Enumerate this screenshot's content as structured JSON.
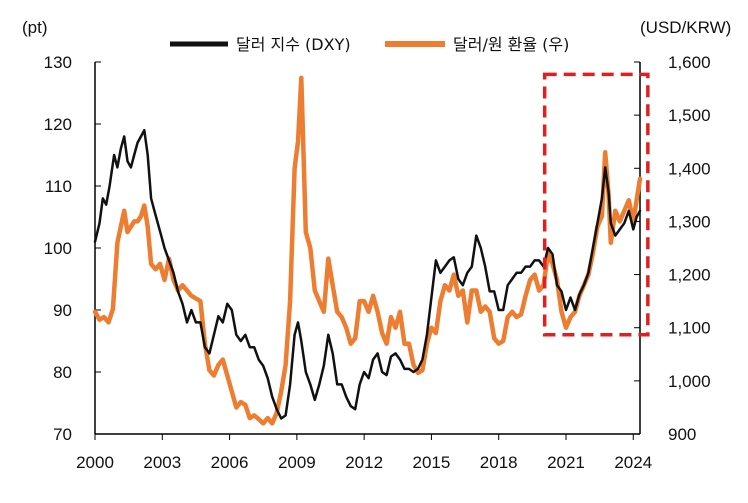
{
  "chart_data": {
    "type": "line",
    "x_axis": {
      "ticks": [
        "2000",
        "2003",
        "2006",
        "2009",
        "2012",
        "2015",
        "2018",
        "2021",
        "2024"
      ],
      "range": [
        2000,
        2024.3
      ]
    },
    "y_left": {
      "unit": "(pt)",
      "range": [
        70,
        130
      ],
      "ticks": [
        "70",
        "80",
        "90",
        "100",
        "110",
        "120",
        "130"
      ]
    },
    "y_right": {
      "unit": "(USD/KRW)",
      "range": [
        900,
        1600
      ],
      "ticks": [
        "900",
        "1,000",
        "1,100",
        "1,200",
        "1,300",
        "1,400",
        "1,500",
        "1,600"
      ]
    },
    "legend_position": "top",
    "series": [
      {
        "name": "달러 지수 (DXY)",
        "axis": "left",
        "color": "#111111",
        "points": [
          [
            2000.0,
            101
          ],
          [
            2000.2,
            104
          ],
          [
            2000.35,
            108
          ],
          [
            2000.5,
            107
          ],
          [
            2000.65,
            110
          ],
          [
            2000.85,
            115
          ],
          [
            2001.0,
            113
          ],
          [
            2001.15,
            116
          ],
          [
            2001.3,
            118
          ],
          [
            2001.45,
            114
          ],
          [
            2001.6,
            113
          ],
          [
            2001.75,
            115
          ],
          [
            2001.9,
            117
          ],
          [
            2002.05,
            118
          ],
          [
            2002.2,
            119
          ],
          [
            2002.35,
            115
          ],
          [
            2002.5,
            108
          ],
          [
            2002.65,
            106
          ],
          [
            2002.8,
            104
          ],
          [
            2002.95,
            102
          ],
          [
            2003.1,
            100
          ],
          [
            2003.3,
            98
          ],
          [
            2003.5,
            96
          ],
          [
            2003.7,
            93
          ],
          [
            2003.9,
            91
          ],
          [
            2004.1,
            88
          ],
          [
            2004.3,
            90
          ],
          [
            2004.5,
            88
          ],
          [
            2004.7,
            88
          ],
          [
            2004.9,
            84
          ],
          [
            2005.1,
            83
          ],
          [
            2005.3,
            86
          ],
          [
            2005.5,
            89
          ],
          [
            2005.7,
            88
          ],
          [
            2005.9,
            91
          ],
          [
            2006.1,
            90
          ],
          [
            2006.3,
            86
          ],
          [
            2006.5,
            85
          ],
          [
            2006.7,
            86
          ],
          [
            2006.9,
            84
          ],
          [
            2007.1,
            84
          ],
          [
            2007.3,
            82
          ],
          [
            2007.5,
            81
          ],
          [
            2007.7,
            79
          ],
          [
            2007.9,
            76
          ],
          [
            2008.1,
            74
          ],
          [
            2008.3,
            72.5
          ],
          [
            2008.5,
            73
          ],
          [
            2008.7,
            78
          ],
          [
            2008.9,
            86
          ],
          [
            2009.05,
            88
          ],
          [
            2009.2,
            85
          ],
          [
            2009.4,
            80
          ],
          [
            2009.6,
            78
          ],
          [
            2009.8,
            75.5
          ],
          [
            2010.0,
            78
          ],
          [
            2010.2,
            81
          ],
          [
            2010.4,
            86
          ],
          [
            2010.6,
            83
          ],
          [
            2010.8,
            78
          ],
          [
            2011.0,
            78
          ],
          [
            2011.2,
            76
          ],
          [
            2011.4,
            74.5
          ],
          [
            2011.6,
            74
          ],
          [
            2011.8,
            78
          ],
          [
            2012.0,
            80
          ],
          [
            2012.2,
            79
          ],
          [
            2012.4,
            82
          ],
          [
            2012.6,
            83
          ],
          [
            2012.8,
            80
          ],
          [
            2013.0,
            79.5
          ],
          [
            2013.2,
            82.5
          ],
          [
            2013.4,
            83
          ],
          [
            2013.6,
            82
          ],
          [
            2013.8,
            80.5
          ],
          [
            2014.0,
            80.5
          ],
          [
            2014.2,
            80
          ],
          [
            2014.4,
            80.5
          ],
          [
            2014.6,
            82
          ],
          [
            2014.8,
            86
          ],
          [
            2015.0,
            92
          ],
          [
            2015.2,
            98
          ],
          [
            2015.4,
            96
          ],
          [
            2015.6,
            97
          ],
          [
            2015.8,
            98
          ],
          [
            2016.0,
            98.5
          ],
          [
            2016.2,
            95
          ],
          [
            2016.4,
            94
          ],
          [
            2016.6,
            96
          ],
          [
            2016.8,
            97
          ],
          [
            2017.0,
            102
          ],
          [
            2017.2,
            100
          ],
          [
            2017.4,
            97
          ],
          [
            2017.6,
            93
          ],
          [
            2017.8,
            93
          ],
          [
            2018.0,
            90
          ],
          [
            2018.2,
            90
          ],
          [
            2018.4,
            94
          ],
          [
            2018.6,
            95
          ],
          [
            2018.8,
            96
          ],
          [
            2019.0,
            96
          ],
          [
            2019.2,
            97
          ],
          [
            2019.4,
            97
          ],
          [
            2019.6,
            98
          ],
          [
            2019.8,
            98
          ],
          [
            2020.0,
            97
          ],
          [
            2020.2,
            100
          ],
          [
            2020.4,
            99
          ],
          [
            2020.6,
            94
          ],
          [
            2020.8,
            93
          ],
          [
            2021.0,
            90
          ],
          [
            2021.2,
            92
          ],
          [
            2021.4,
            90
          ],
          [
            2021.6,
            92.5
          ],
          [
            2021.8,
            94
          ],
          [
            2022.0,
            96
          ],
          [
            2022.2,
            100
          ],
          [
            2022.4,
            104
          ],
          [
            2022.6,
            108
          ],
          [
            2022.75,
            113
          ],
          [
            2022.9,
            109
          ],
          [
            2023.0,
            104
          ],
          [
            2023.2,
            102
          ],
          [
            2023.4,
            103
          ],
          [
            2023.6,
            104
          ],
          [
            2023.8,
            106
          ],
          [
            2024.0,
            103
          ],
          [
            2024.15,
            105
          ],
          [
            2024.3,
            106
          ]
        ]
      },
      {
        "name": "달러/원 환율 (우)",
        "axis": "right",
        "color": "#ED7D31",
        "points": [
          [
            2000.0,
            1130
          ],
          [
            2000.2,
            1115
          ],
          [
            2000.4,
            1120
          ],
          [
            2000.6,
            1110
          ],
          [
            2000.8,
            1135
          ],
          [
            2001.0,
            1260
          ],
          [
            2001.15,
            1290
          ],
          [
            2001.3,
            1320
          ],
          [
            2001.45,
            1280
          ],
          [
            2001.6,
            1290
          ],
          [
            2001.75,
            1300
          ],
          [
            2001.9,
            1300
          ],
          [
            2002.05,
            1310
          ],
          [
            2002.2,
            1330
          ],
          [
            2002.35,
            1290
          ],
          [
            2002.5,
            1220
          ],
          [
            2002.7,
            1210
          ],
          [
            2002.9,
            1220
          ],
          [
            2003.1,
            1190
          ],
          [
            2003.3,
            1230
          ],
          [
            2003.5,
            1190
          ],
          [
            2003.7,
            1170
          ],
          [
            2003.9,
            1180
          ],
          [
            2004.1,
            1170
          ],
          [
            2004.3,
            1160
          ],
          [
            2004.5,
            1155
          ],
          [
            2004.7,
            1150
          ],
          [
            2004.9,
            1070
          ],
          [
            2005.1,
            1020
          ],
          [
            2005.3,
            1010
          ],
          [
            2005.5,
            1030
          ],
          [
            2005.7,
            1040
          ],
          [
            2005.9,
            1010
          ],
          [
            2006.1,
            980
          ],
          [
            2006.3,
            950
          ],
          [
            2006.5,
            960
          ],
          [
            2006.7,
            955
          ],
          [
            2006.9,
            930
          ],
          [
            2007.1,
            935
          ],
          [
            2007.3,
            928
          ],
          [
            2007.5,
            920
          ],
          [
            2007.7,
            930
          ],
          [
            2007.9,
            920
          ],
          [
            2008.1,
            940
          ],
          [
            2008.3,
            980
          ],
          [
            2008.5,
            1030
          ],
          [
            2008.7,
            1150
          ],
          [
            2008.9,
            1400
          ],
          [
            2009.05,
            1450
          ],
          [
            2009.2,
            1570
          ],
          [
            2009.4,
            1280
          ],
          [
            2009.6,
            1250
          ],
          [
            2009.8,
            1170
          ],
          [
            2010.0,
            1150
          ],
          [
            2010.2,
            1130
          ],
          [
            2010.4,
            1230
          ],
          [
            2010.6,
            1180
          ],
          [
            2010.8,
            1130
          ],
          [
            2011.0,
            1120
          ],
          [
            2011.2,
            1100
          ],
          [
            2011.4,
            1070
          ],
          [
            2011.6,
            1080
          ],
          [
            2011.8,
            1150
          ],
          [
            2012.0,
            1150
          ],
          [
            2012.2,
            1130
          ],
          [
            2012.4,
            1160
          ],
          [
            2012.6,
            1130
          ],
          [
            2012.8,
            1090
          ],
          [
            2013.0,
            1070
          ],
          [
            2013.2,
            1120
          ],
          [
            2013.4,
            1100
          ],
          [
            2013.6,
            1130
          ],
          [
            2013.8,
            1070
          ],
          [
            2014.0,
            1070
          ],
          [
            2014.2,
            1030
          ],
          [
            2014.4,
            1015
          ],
          [
            2014.6,
            1020
          ],
          [
            2014.8,
            1070
          ],
          [
            2015.0,
            1100
          ],
          [
            2015.2,
            1090
          ],
          [
            2015.4,
            1150
          ],
          [
            2015.6,
            1180
          ],
          [
            2015.8,
            1170
          ],
          [
            2016.0,
            1200
          ],
          [
            2016.2,
            1160
          ],
          [
            2016.4,
            1170
          ],
          [
            2016.6,
            1110
          ],
          [
            2016.8,
            1170
          ],
          [
            2017.0,
            1170
          ],
          [
            2017.2,
            1130
          ],
          [
            2017.4,
            1140
          ],
          [
            2017.6,
            1130
          ],
          [
            2017.8,
            1080
          ],
          [
            2018.0,
            1070
          ],
          [
            2018.2,
            1075
          ],
          [
            2018.4,
            1120
          ],
          [
            2018.6,
            1130
          ],
          [
            2018.8,
            1120
          ],
          [
            2019.0,
            1125
          ],
          [
            2019.2,
            1160
          ],
          [
            2019.4,
            1190
          ],
          [
            2019.6,
            1200
          ],
          [
            2019.8,
            1170
          ],
          [
            2020.0,
            1180
          ],
          [
            2020.2,
            1240
          ],
          [
            2020.4,
            1220
          ],
          [
            2020.6,
            1190
          ],
          [
            2020.8,
            1130
          ],
          [
            2021.0,
            1100
          ],
          [
            2021.2,
            1120
          ],
          [
            2021.4,
            1130
          ],
          [
            2021.6,
            1160
          ],
          [
            2021.8,
            1180
          ],
          [
            2022.0,
            1200
          ],
          [
            2022.2,
            1240
          ],
          [
            2022.4,
            1290
          ],
          [
            2022.6,
            1310
          ],
          [
            2022.75,
            1430
          ],
          [
            2022.9,
            1350
          ],
          [
            2023.0,
            1260
          ],
          [
            2023.2,
            1320
          ],
          [
            2023.4,
            1300
          ],
          [
            2023.6,
            1320
          ],
          [
            2023.8,
            1340
          ],
          [
            2024.0,
            1300
          ],
          [
            2024.15,
            1340
          ],
          [
            2024.3,
            1380
          ]
        ]
      }
    ],
    "annotations": [
      {
        "type": "dashed-box",
        "color": "#E02020",
        "x_range": [
          2020.05,
          2024.65
        ],
        "y_left_range": [
          86,
          128
        ]
      }
    ]
  }
}
